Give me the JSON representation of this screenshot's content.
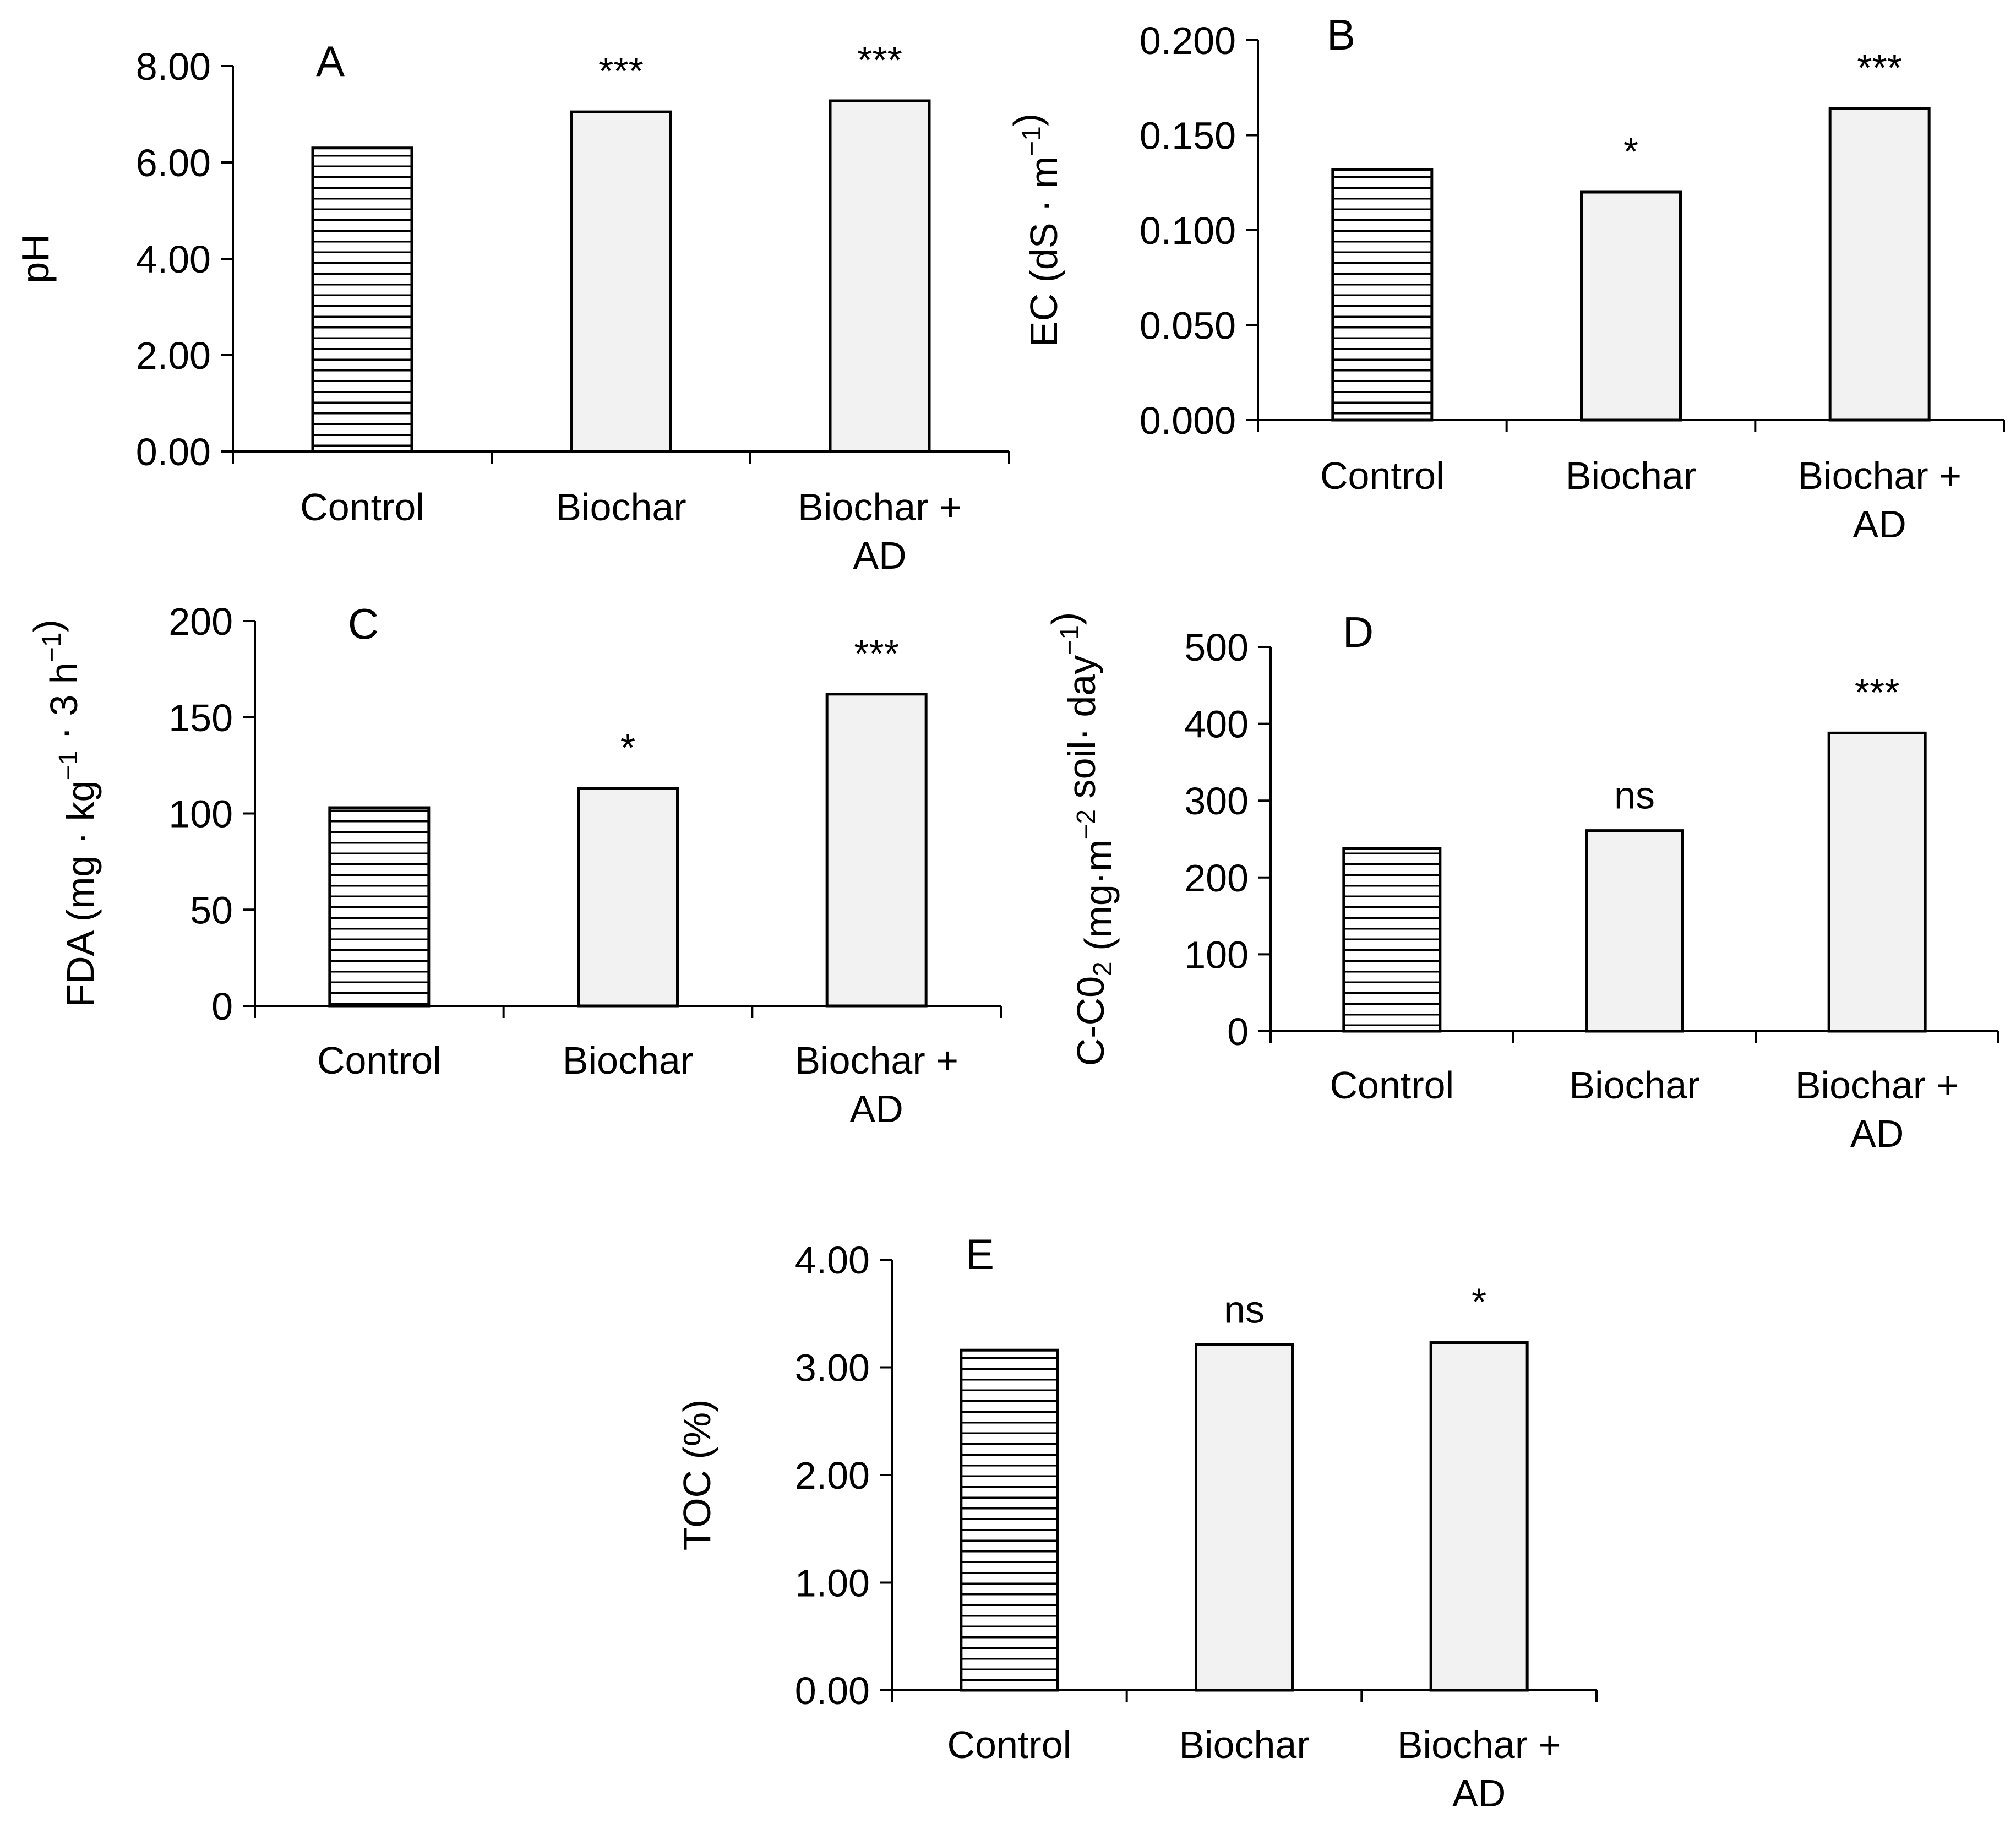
{
  "chart_data": [
    {
      "panel": "A",
      "type": "bar",
      "ylabel": "pH",
      "ylabel_parts": [],
      "ylim": [
        0,
        8
      ],
      "ticks": [
        0,
        2,
        4,
        6,
        8
      ],
      "tick_labels": [
        "0.00",
        "2.00",
        "4.00",
        "6.00",
        "8.00"
      ],
      "categories": [
        [
          "Control"
        ],
        [
          "Biochar"
        ],
        [
          "Biochar +",
          "AD"
        ]
      ],
      "values": [
        6.3,
        7.05,
        7.28
      ],
      "significance": [
        "",
        "***",
        "***"
      ]
    },
    {
      "panel": "B",
      "type": "bar",
      "ylabel": "EC (dS · m",
      "ylabel_parts": [
        {
          "t": "EC (dS · m"
        },
        {
          "t": "−1",
          "sup": true
        },
        {
          "t": ")"
        }
      ],
      "ylim": [
        0,
        0.2
      ],
      "ticks": [
        0,
        0.05,
        0.1,
        0.15,
        0.2
      ],
      "tick_labels": [
        "0.000",
        "0.050",
        "0.100",
        "0.150",
        "0.200"
      ],
      "categories": [
        [
          "Control"
        ],
        [
          "Biochar"
        ],
        [
          "Biochar +",
          "AD"
        ]
      ],
      "values": [
        0.132,
        0.12,
        0.164
      ],
      "significance": [
        "",
        "*",
        "***"
      ]
    },
    {
      "panel": "C",
      "type": "bar",
      "ylabel": "FDA (mg · kg",
      "ylabel_parts": [
        {
          "t": "FDA (mg · kg"
        },
        {
          "t": "−1",
          "sup": true
        },
        {
          "t": " · 3 h"
        },
        {
          "t": "−1",
          "sup": true
        },
        {
          "t": ")"
        }
      ],
      "ylim": [
        0,
        200
      ],
      "ticks": [
        0,
        50,
        100,
        150,
        200
      ],
      "tick_labels": [
        "0",
        "50",
        "100",
        "150",
        "200"
      ],
      "categories": [
        [
          "Control"
        ],
        [
          "Biochar"
        ],
        [
          "Biochar +",
          "AD"
        ]
      ],
      "values": [
        103,
        113,
        162
      ],
      "significance": [
        "",
        "*",
        "***"
      ]
    },
    {
      "panel": "D",
      "type": "bar",
      "ylabel": "C-C0",
      "ylabel_parts": [
        {
          "t": "C-C0"
        },
        {
          "t": "2",
          "sub": true
        },
        {
          "t": " (mg·m"
        },
        {
          "t": "−2",
          "sup": true
        },
        {
          "t": " soil· day"
        },
        {
          "t": "−1",
          "sup": true
        },
        {
          "t": ")"
        }
      ],
      "ylim": [
        0,
        500
      ],
      "ticks": [
        0,
        100,
        200,
        300,
        400,
        500
      ],
      "tick_labels": [
        "0",
        "100",
        "200",
        "300",
        "400",
        "500"
      ],
      "categories": [
        [
          "Control"
        ],
        [
          "Biochar"
        ],
        [
          "Biochar +",
          "AD"
        ]
      ],
      "values": [
        238,
        261,
        388
      ],
      "significance": [
        "",
        "ns",
        "***"
      ]
    },
    {
      "panel": "E",
      "type": "bar",
      "ylabel": "TOC (%)",
      "ylabel_parts": [],
      "ylim": [
        0,
        4
      ],
      "ticks": [
        0,
        1,
        2,
        3,
        4
      ],
      "tick_labels": [
        "0.00",
        "1.00",
        "2.00",
        "3.00",
        "4.00"
      ],
      "categories": [
        [
          "Control"
        ],
        [
          "Biochar"
        ],
        [
          "Biochar +",
          "AD"
        ]
      ],
      "values": [
        3.16,
        3.21,
        3.23
      ],
      "significance": [
        "",
        "ns",
        "*"
      ]
    }
  ],
  "series": [
    {
      "name": "Control",
      "pattern": "horizontal-stripes"
    },
    {
      "name": "Biochar",
      "color": "#f2f2f2"
    },
    {
      "name": "Biochar + AD",
      "color": "#f2f2f2"
    }
  ]
}
